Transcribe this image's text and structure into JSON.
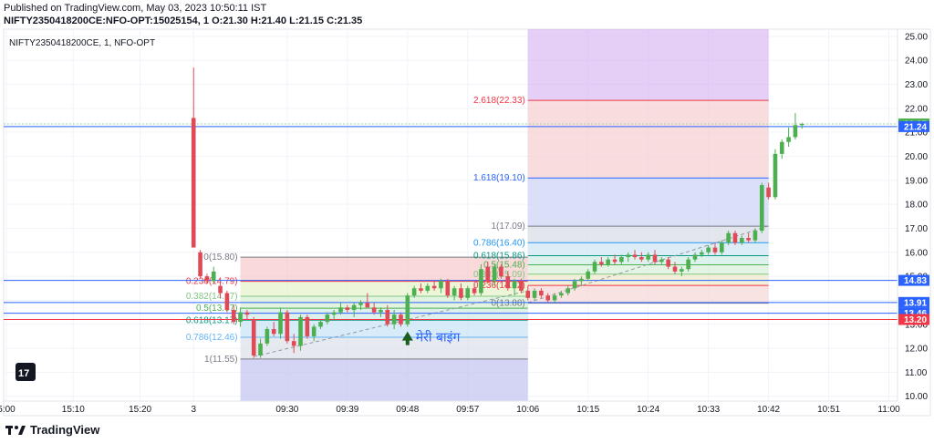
{
  "header": {
    "published": "Published on TradingView.com, May 03, 2023 10:50:11 IST",
    "symbol": "NIFTY2350418200CE:NFO-OPT:15025154, 1",
    "o_label": "O:",
    "o": "21.30",
    "h_label": "H:",
    "h": "21.40",
    "l_label": "L:",
    "l": "21.15",
    "c_label": "C:",
    "c": "21.35"
  },
  "chart_title": "NIFTY2350418200CE, 1, NFO-OPT",
  "footer": {
    "brand": "TradingView"
  },
  "colors": {
    "up": "#4caf50",
    "down": "#e04a57",
    "grid": "#f0f3fa",
    "blue_line": "#2962ff",
    "red_line": "#f23645",
    "axis_text": "#787b86"
  },
  "chart_data": {
    "type": "candlestick",
    "ylim": [
      9.8,
      25.3
    ],
    "y_ticks": [
      10.0,
      11.0,
      12.0,
      13.0,
      14.0,
      15.0,
      16.0,
      17.0,
      18.0,
      19.0,
      20.0,
      21.0,
      22.0,
      23.0,
      24.0,
      25.0
    ],
    "x_ticks": [
      {
        "label": "5:00",
        "pos": 0
      },
      {
        "label": "15:10",
        "pos": 10
      },
      {
        "label": "15:20",
        "pos": 20
      },
      {
        "label": "3",
        "pos": 28
      },
      {
        "label": "09:30",
        "pos": 42
      },
      {
        "label": "09:39",
        "pos": 51
      },
      {
        "label": "09:48",
        "pos": 60
      },
      {
        "label": "09:57",
        "pos": 69
      },
      {
        "label": "10:06",
        "pos": 78
      },
      {
        "label": "10:15",
        "pos": 87
      },
      {
        "label": "10:24",
        "pos": 96
      },
      {
        "label": "10:33",
        "pos": 105
      },
      {
        "label": "10:42",
        "pos": 114
      },
      {
        "label": "10:51",
        "pos": 123
      },
      {
        "label": "11:00",
        "pos": 132
      }
    ],
    "candles": [
      {
        "i": 28,
        "o": 21.6,
        "h": 23.7,
        "l": 16.2,
        "c": 16.2
      },
      {
        "i": 29,
        "o": 16.0,
        "h": 16.1,
        "l": 14.9,
        "c": 15.0
      },
      {
        "i": 30,
        "o": 15.0,
        "h": 15.1,
        "l": 14.7,
        "c": 14.8
      },
      {
        "i": 31,
        "o": 14.8,
        "h": 15.4,
        "l": 14.7,
        "c": 15.2
      },
      {
        "i": 32,
        "o": 14.6,
        "h": 14.8,
        "l": 14.1,
        "c": 14.3
      },
      {
        "i": 33,
        "o": 14.3,
        "h": 14.4,
        "l": 13.5,
        "c": 13.6
      },
      {
        "i": 34,
        "o": 13.6,
        "h": 13.8,
        "l": 13.0,
        "c": 13.1
      },
      {
        "i": 35,
        "o": 13.1,
        "h": 13.7,
        "l": 12.9,
        "c": 13.5
      },
      {
        "i": 36,
        "o": 13.5,
        "h": 13.6,
        "l": 13.2,
        "c": 13.4
      },
      {
        "i": 37,
        "o": 13.2,
        "h": 13.3,
        "l": 11.6,
        "c": 11.7
      },
      {
        "i": 38,
        "o": 11.7,
        "h": 12.4,
        "l": 11.6,
        "c": 12.2
      },
      {
        "i": 39,
        "o": 12.2,
        "h": 12.9,
        "l": 12.1,
        "c": 12.8
      },
      {
        "i": 40,
        "o": 12.8,
        "h": 13.1,
        "l": 12.5,
        "c": 12.6
      },
      {
        "i": 41,
        "o": 12.6,
        "h": 13.7,
        "l": 12.4,
        "c": 13.5
      },
      {
        "i": 42,
        "o": 13.5,
        "h": 13.6,
        "l": 12.2,
        "c": 12.3
      },
      {
        "i": 43,
        "o": 12.3,
        "h": 12.6,
        "l": 11.8,
        "c": 12.1
      },
      {
        "i": 44,
        "o": 12.1,
        "h": 13.4,
        "l": 11.9,
        "c": 13.3
      },
      {
        "i": 45,
        "o": 13.3,
        "h": 13.4,
        "l": 12.4,
        "c": 12.5
      },
      {
        "i": 46,
        "o": 12.5,
        "h": 13.0,
        "l": 12.3,
        "c": 12.9
      },
      {
        "i": 47,
        "o": 12.9,
        "h": 13.2,
        "l": 12.8,
        "c": 13.1
      },
      {
        "i": 48,
        "o": 13.1,
        "h": 13.5,
        "l": 13.0,
        "c": 13.4
      },
      {
        "i": 49,
        "o": 13.4,
        "h": 13.6,
        "l": 13.2,
        "c": 13.5
      },
      {
        "i": 50,
        "o": 13.5,
        "h": 13.9,
        "l": 13.4,
        "c": 13.7
      },
      {
        "i": 51,
        "o": 13.7,
        "h": 13.8,
        "l": 13.5,
        "c": 13.6
      },
      {
        "i": 52,
        "o": 13.6,
        "h": 13.9,
        "l": 13.3,
        "c": 13.8
      },
      {
        "i": 53,
        "o": 13.8,
        "h": 14.0,
        "l": 13.6,
        "c": 13.9
      },
      {
        "i": 54,
        "o": 13.9,
        "h": 14.3,
        "l": 13.8,
        "c": 13.7
      },
      {
        "i": 55,
        "o": 13.7,
        "h": 13.9,
        "l": 13.4,
        "c": 13.5
      },
      {
        "i": 56,
        "o": 13.5,
        "h": 13.7,
        "l": 13.3,
        "c": 13.6
      },
      {
        "i": 57,
        "o": 13.6,
        "h": 13.8,
        "l": 12.9,
        "c": 13.0
      },
      {
        "i": 58,
        "o": 13.0,
        "h": 13.6,
        "l": 12.8,
        "c": 13.4
      },
      {
        "i": 59,
        "o": 13.4,
        "h": 13.5,
        "l": 12.9,
        "c": 13.0
      },
      {
        "i": 60,
        "o": 13.0,
        "h": 14.3,
        "l": 12.9,
        "c": 14.2
      },
      {
        "i": 61,
        "o": 14.2,
        "h": 14.6,
        "l": 14.1,
        "c": 14.5
      },
      {
        "i": 62,
        "o": 14.5,
        "h": 14.7,
        "l": 14.3,
        "c": 14.4
      },
      {
        "i": 63,
        "o": 14.4,
        "h": 14.7,
        "l": 14.3,
        "c": 14.6
      },
      {
        "i": 64,
        "o": 14.6,
        "h": 14.8,
        "l": 14.4,
        "c": 14.5
      },
      {
        "i": 65,
        "o": 14.5,
        "h": 14.9,
        "l": 14.3,
        "c": 14.8
      },
      {
        "i": 66,
        "o": 14.8,
        "h": 14.9,
        "l": 14.1,
        "c": 14.2
      },
      {
        "i": 67,
        "o": 14.2,
        "h": 14.6,
        "l": 14.0,
        "c": 14.5
      },
      {
        "i": 68,
        "o": 14.5,
        "h": 14.7,
        "l": 14.0,
        "c": 14.1
      },
      {
        "i": 69,
        "o": 14.1,
        "h": 14.6,
        "l": 14.0,
        "c": 14.5
      },
      {
        "i": 70,
        "o": 14.5,
        "h": 14.7,
        "l": 14.2,
        "c": 14.3
      },
      {
        "i": 71,
        "o": 14.3,
        "h": 15.5,
        "l": 14.2,
        "c": 15.3
      },
      {
        "i": 72,
        "o": 15.4,
        "h": 15.6,
        "l": 14.7,
        "c": 14.8
      },
      {
        "i": 73,
        "o": 14.8,
        "h": 15.5,
        "l": 14.6,
        "c": 15.4
      },
      {
        "i": 74,
        "o": 15.4,
        "h": 15.5,
        "l": 14.9,
        "c": 15.0
      },
      {
        "i": 75,
        "o": 15.0,
        "h": 15.2,
        "l": 14.4,
        "c": 14.5
      },
      {
        "i": 76,
        "o": 14.5,
        "h": 14.9,
        "l": 14.2,
        "c": 14.8
      },
      {
        "i": 77,
        "o": 14.8,
        "h": 14.9,
        "l": 14.3,
        "c": 14.4
      },
      {
        "i": 78,
        "o": 14.4,
        "h": 14.6,
        "l": 14.0,
        "c": 14.1
      },
      {
        "i": 79,
        "o": 14.1,
        "h": 14.5,
        "l": 14.0,
        "c": 14.4
      },
      {
        "i": 80,
        "o": 14.4,
        "h": 14.5,
        "l": 14.1,
        "c": 14.2
      },
      {
        "i": 81,
        "o": 14.2,
        "h": 14.3,
        "l": 13.9,
        "c": 14.0
      },
      {
        "i": 82,
        "o": 14.0,
        "h": 14.3,
        "l": 13.9,
        "c": 14.2
      },
      {
        "i": 83,
        "o": 14.2,
        "h": 14.4,
        "l": 14.1,
        "c": 14.3
      },
      {
        "i": 84,
        "o": 14.3,
        "h": 14.6,
        "l": 14.2,
        "c": 14.5
      },
      {
        "i": 85,
        "o": 14.5,
        "h": 14.9,
        "l": 14.4,
        "c": 14.8
      },
      {
        "i": 86,
        "o": 14.8,
        "h": 15.0,
        "l": 14.6,
        "c": 14.9
      },
      {
        "i": 87,
        "o": 14.9,
        "h": 15.3,
        "l": 14.8,
        "c": 15.2
      },
      {
        "i": 88,
        "o": 15.2,
        "h": 15.7,
        "l": 15.1,
        "c": 15.6
      },
      {
        "i": 89,
        "o": 15.6,
        "h": 15.8,
        "l": 15.4,
        "c": 15.5
      },
      {
        "i": 90,
        "o": 15.5,
        "h": 15.8,
        "l": 15.4,
        "c": 15.7
      },
      {
        "i": 91,
        "o": 15.7,
        "h": 15.9,
        "l": 15.5,
        "c": 15.6
      },
      {
        "i": 92,
        "o": 15.6,
        "h": 15.9,
        "l": 15.5,
        "c": 15.8
      },
      {
        "i": 93,
        "o": 15.8,
        "h": 16.0,
        "l": 15.6,
        "c": 15.9
      },
      {
        "i": 94,
        "o": 15.9,
        "h": 16.1,
        "l": 15.7,
        "c": 15.8
      },
      {
        "i": 95,
        "o": 15.8,
        "h": 16.0,
        "l": 15.6,
        "c": 15.7
      },
      {
        "i": 96,
        "o": 15.7,
        "h": 16.0,
        "l": 15.6,
        "c": 15.9
      },
      {
        "i": 97,
        "o": 15.9,
        "h": 16.1,
        "l": 15.5,
        "c": 15.6
      },
      {
        "i": 98,
        "o": 15.6,
        "h": 15.8,
        "l": 15.5,
        "c": 15.7
      },
      {
        "i": 99,
        "o": 15.7,
        "h": 15.8,
        "l": 15.3,
        "c": 15.4
      },
      {
        "i": 100,
        "o": 15.4,
        "h": 15.6,
        "l": 15.1,
        "c": 15.2
      },
      {
        "i": 101,
        "o": 15.2,
        "h": 15.4,
        "l": 15.0,
        "c": 15.3
      },
      {
        "i": 102,
        "o": 15.3,
        "h": 15.8,
        "l": 15.2,
        "c": 15.7
      },
      {
        "i": 103,
        "o": 15.7,
        "h": 16.0,
        "l": 15.6,
        "c": 15.9
      },
      {
        "i": 104,
        "o": 15.9,
        "h": 16.1,
        "l": 15.8,
        "c": 16.0
      },
      {
        "i": 105,
        "o": 16.0,
        "h": 16.3,
        "l": 15.9,
        "c": 16.2
      },
      {
        "i": 106,
        "o": 16.2,
        "h": 16.4,
        "l": 15.9,
        "c": 16.0
      },
      {
        "i": 107,
        "o": 16.0,
        "h": 16.5,
        "l": 15.9,
        "c": 16.4
      },
      {
        "i": 108,
        "o": 16.4,
        "h": 16.9,
        "l": 16.3,
        "c": 16.8
      },
      {
        "i": 109,
        "o": 16.8,
        "h": 16.9,
        "l": 16.3,
        "c": 16.4
      },
      {
        "i": 110,
        "o": 16.4,
        "h": 16.7,
        "l": 16.3,
        "c": 16.6
      },
      {
        "i": 111,
        "o": 16.6,
        "h": 16.8,
        "l": 16.4,
        "c": 16.5
      },
      {
        "i": 112,
        "o": 16.5,
        "h": 17.0,
        "l": 16.4,
        "c": 16.9
      },
      {
        "i": 113,
        "o": 16.9,
        "h": 18.9,
        "l": 16.8,
        "c": 18.8
      },
      {
        "i": 114,
        "o": 18.7,
        "h": 18.9,
        "l": 18.2,
        "c": 18.3
      },
      {
        "i": 115,
        "o": 18.3,
        "h": 20.3,
        "l": 18.2,
        "c": 20.1
      },
      {
        "i": 116,
        "o": 20.1,
        "h": 20.7,
        "l": 19.9,
        "c": 20.6
      },
      {
        "i": 117,
        "o": 20.6,
        "h": 21.2,
        "l": 20.4,
        "c": 20.8
      },
      {
        "i": 118,
        "o": 20.8,
        "h": 21.8,
        "l": 20.7,
        "c": 21.3
      },
      {
        "i": 119,
        "o": 21.3,
        "h": 21.4,
        "l": 21.15,
        "c": 21.35
      }
    ],
    "fib_left": {
      "i_start": 35,
      "i_end": 78,
      "levels": [
        {
          "label": "0(15.80)",
          "value": 15.8,
          "color": "#787b86"
        },
        {
          "label": "0.236(14.79)",
          "value": 14.79,
          "color": "#f23645"
        },
        {
          "label": "0.382(14.17)",
          "value": 14.17,
          "color": "#81c784"
        },
        {
          "label": "0.5(13.67)",
          "value": 13.67,
          "color": "#4caf50"
        },
        {
          "label": "0.618(13.17)",
          "value": 13.17,
          "color": "#089981"
        },
        {
          "label": "0.786(12.46)",
          "value": 12.46,
          "color": "#64b5f6"
        },
        {
          "label": "1(11.55)",
          "value": 11.55,
          "color": "#787b86"
        }
      ]
    },
    "fib_right": {
      "i_start": 78,
      "i_end": 114,
      "levels": [
        {
          "label": "2.618(22.33)",
          "value": 22.33,
          "color": "#f23645"
        },
        {
          "label": "1.618(19.10)",
          "value": 19.1,
          "color": "#2962ff"
        },
        {
          "label": "1(17.09)",
          "value": 17.09,
          "color": "#787b86"
        },
        {
          "label": "0.786(16.40)",
          "value": 16.4,
          "color": "#2196f3"
        },
        {
          "label": "0.618(15.86)",
          "value": 15.86,
          "color": "#089981"
        },
        {
          "label": "0.5(15.48)",
          "value": 15.48,
          "color": "#4caf50"
        },
        {
          "label": "0.382(15.09)",
          "value": 15.09,
          "color": "#81c784"
        },
        {
          "label": "0.236(14.62)",
          "value": 14.62,
          "color": "#f23645"
        },
        {
          "label": "0(13.88)",
          "value": 13.88,
          "color": "#787b86"
        }
      ]
    },
    "price_lines": [
      {
        "value": 21.35,
        "label": "21.35",
        "bg": "#4caf50",
        "color": "#a5d6a7",
        "style": "dotted"
      },
      {
        "value": 21.24,
        "label": "21.24",
        "bg": "#2962ff",
        "color": "#2962ff",
        "style": "solid"
      },
      {
        "value": 14.83,
        "label": "14.83",
        "bg": "#2962ff",
        "color": "#2962ff",
        "style": "solid"
      },
      {
        "value": 13.91,
        "label": "13.91",
        "bg": "#2962ff",
        "color": "#2962ff",
        "style": "solid"
      },
      {
        "value": 13.46,
        "label": "13.46",
        "bg": "#2962ff",
        "color": "#2962ff",
        "style": "solid"
      },
      {
        "value": 13.2,
        "label": "13.20",
        "bg": "#f23645",
        "color": "#f23645",
        "style": "solid"
      }
    ],
    "annotation": {
      "text": "मेरी बाइंग",
      "i": 60,
      "value": 12.55,
      "color": "#2962ff"
    }
  }
}
